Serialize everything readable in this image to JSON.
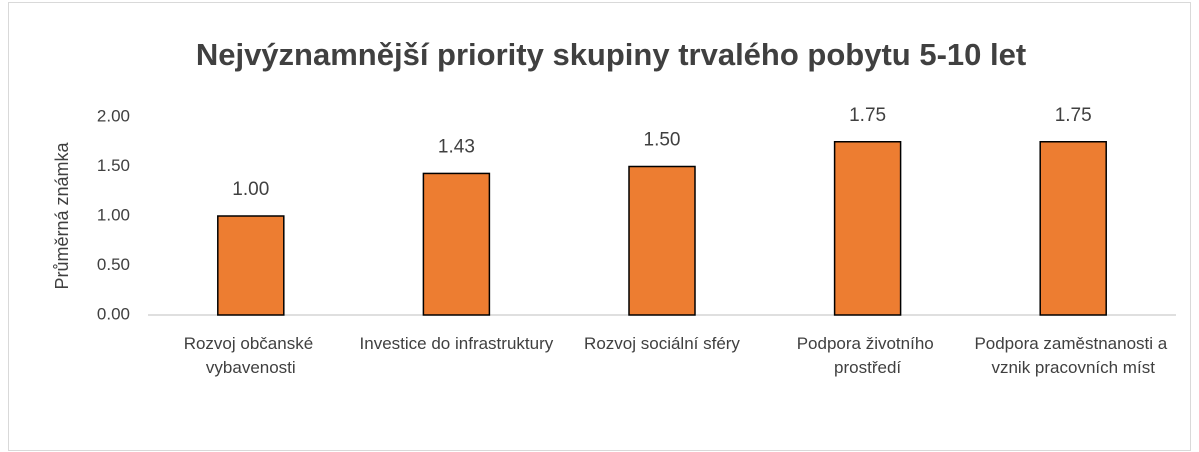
{
  "chart_data": {
    "type": "bar",
    "title": "Nejvýznamnější priority skupiny trvalého pobytu 5-10 let",
    "y_label": "Průměrná známka",
    "categories": [
      "Rozvoj občanské vybavenosti",
      "Investice do infrastruktury",
      "Rozvoj sociální sféry",
      "Podpora životního prostředí",
      "Podpora zaměstnanosti a vznik pracovních míst"
    ],
    "values": [
      1.0,
      1.43,
      1.5,
      1.75,
      1.75
    ],
    "value_labels": [
      "1.00",
      "1.43",
      "1.50",
      "1.75",
      "1.75"
    ],
    "color": "#ed7d31",
    "ylim": [
      0,
      2
    ],
    "yticks": [
      {
        "value": 0,
        "label": "0.00"
      },
      {
        "value": 0.5,
        "label": "0.50"
      },
      {
        "value": 1,
        "label": "1.00"
      },
      {
        "value": 1.5,
        "label": "1.50"
      },
      {
        "value": 2,
        "label": "2.00"
      }
    ],
    "grid": false
  }
}
